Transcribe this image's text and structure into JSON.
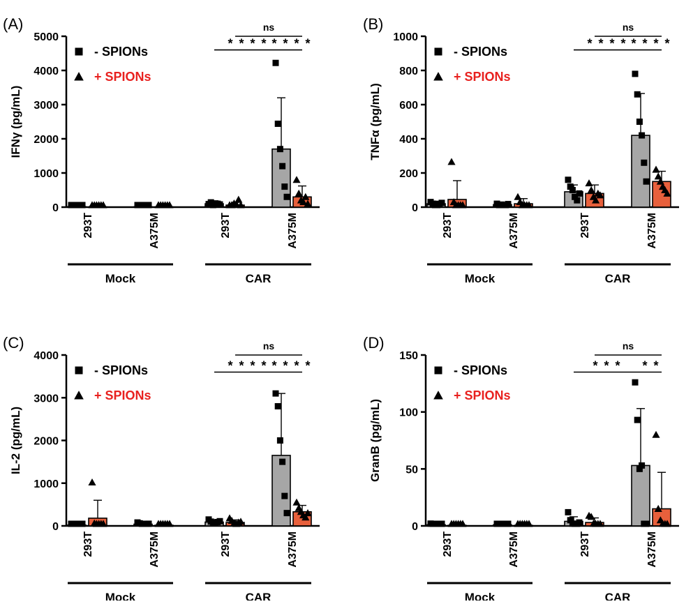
{
  "colors": {
    "minus_bar": "#a6a6a6",
    "plus_bar": "#e8603c",
    "legend_plus_text": "#e8211f",
    "ink": "#000000"
  },
  "chart_data": [
    {
      "type": "bar",
      "panel_label": "(A)",
      "ylabel": "IFNγ (pg/mL)",
      "ylim": [
        0,
        5000
      ],
      "yticks": [
        0,
        1000,
        2000,
        3000,
        4000,
        5000
      ],
      "categories": [
        "293T",
        "A375M",
        "293T",
        "A375M"
      ],
      "groups": [
        {
          "label": "Mock",
          "categories": [
            0,
            1
          ]
        },
        {
          "label": "CAR",
          "categories": [
            2,
            3
          ]
        }
      ],
      "legend": [
        "- SPIONs",
        "+ SPIONs"
      ],
      "series": [
        {
          "name": "- SPIONs",
          "marker": "square",
          "values": [
            15,
            10,
            100,
            1700
          ],
          "error": [
            15,
            10,
            60,
            1500
          ],
          "points": [
            [
              20,
              10,
              5,
              15,
              8,
              12
            ],
            [
              12,
              8,
              5,
              10,
              14,
              6
            ],
            [
              90,
              140,
              60,
              110,
              100,
              80
            ],
            [
              4220,
              2440,
              1700,
              1200,
              600,
              300
            ]
          ]
        },
        {
          "name": "+ SPIONs",
          "marker": "triangle",
          "values": [
            8,
            8,
            60,
            300
          ],
          "error": [
            5,
            5,
            80,
            320
          ],
          "points": [
            [
              10,
              5,
              8,
              12,
              6,
              7
            ],
            [
              6,
              9,
              5,
              11,
              7,
              10
            ],
            [
              30,
              60,
              110,
              90,
              220,
              50
            ],
            [
              800,
              400,
              200,
              150,
              300,
              100
            ]
          ]
        }
      ],
      "significance": [
        {
          "label": "****",
          "from": [
            2,
            0
          ],
          "to": [
            3,
            0
          ],
          "y": 4600
        },
        {
          "label": "****",
          "from": [
            3,
            0
          ],
          "to": [
            3,
            1
          ],
          "y": 4600
        },
        {
          "label": "ns",
          "from": [
            2,
            1
          ],
          "to": [
            3,
            1
          ],
          "y": 5000
        }
      ]
    },
    {
      "type": "bar",
      "panel_label": "(B)",
      "ylabel": "TNFα (pg/mL)",
      "ylim": [
        0,
        1000
      ],
      "yticks": [
        0,
        200,
        400,
        600,
        800,
        1000
      ],
      "categories": [
        "293T",
        "A375M",
        "293T",
        "A375M"
      ],
      "groups": [
        {
          "label": "Mock",
          "categories": [
            0,
            1
          ]
        },
        {
          "label": "CAR",
          "categories": [
            2,
            3
          ]
        }
      ],
      "legend": [
        "- SPIONs",
        "+ SPIONs"
      ],
      "series": [
        {
          "name": "- SPIONs",
          "marker": "square",
          "values": [
            20,
            15,
            90,
            420
          ],
          "error": [
            15,
            10,
            40,
            245
          ],
          "points": [
            [
              30,
              20,
              10,
              5,
              15,
              25
            ],
            [
              20,
              10,
              15,
              8,
              12,
              18
            ],
            [
              160,
              120,
              100,
              60,
              40,
              80
            ],
            [
              780,
              660,
              500,
              420,
              260,
              150
            ]
          ]
        },
        {
          "name": "+ SPIONs",
          "marker": "triangle",
          "values": [
            45,
            20,
            80,
            150
          ],
          "error": [
            110,
            30,
            50,
            60
          ],
          "points": [
            [
              265,
              30,
              10,
              5,
              8,
              12
            ],
            [
              60,
              30,
              10,
              5,
              8,
              12
            ],
            [
              140,
              100,
              60,
              40,
              80,
              70
            ],
            [
              220,
              180,
              150,
              120,
              100,
              80
            ]
          ]
        }
      ],
      "significance": [
        {
          "label": "****",
          "from": [
            2,
            0
          ],
          "to": [
            3,
            0
          ],
          "y": 920
        },
        {
          "label": "****",
          "from": [
            3,
            0
          ],
          "to": [
            3,
            1
          ],
          "y": 920
        },
        {
          "label": "ns",
          "from": [
            2,
            1
          ],
          "to": [
            3,
            1
          ],
          "y": 1000
        }
      ]
    },
    {
      "type": "bar",
      "panel_label": "(C)",
      "ylabel": "IL-2 (pg/mL)",
      "ylim": [
        0,
        4000
      ],
      "yticks": [
        0,
        1000,
        2000,
        3000,
        4000
      ],
      "categories": [
        "293T",
        "A375M",
        "293T",
        "A375M"
      ],
      "groups": [
        {
          "label": "Mock",
          "categories": [
            0,
            1
          ]
        },
        {
          "label": "CAR",
          "categories": [
            2,
            3
          ]
        }
      ],
      "legend": [
        "- SPIONs",
        "+ SPIONs"
      ],
      "series": [
        {
          "name": "- SPIONs",
          "marker": "square",
          "values": [
            20,
            40,
            90,
            1650
          ],
          "error": [
            10,
            30,
            40,
            1450
          ],
          "points": [
            [
              25,
              15,
              10,
              20,
              30,
              18
            ],
            [
              80,
              60,
              40,
              20,
              30,
              50
            ],
            [
              150,
              100,
              80,
              60,
              90,
              110
            ],
            [
              3100,
              2800,
              2000,
              1500,
              700,
              300
            ]
          ]
        },
        {
          "name": "+ SPIONs",
          "marker": "triangle",
          "values": [
            180,
            15,
            80,
            330
          ],
          "error": [
            420,
            10,
            60,
            150
          ],
          "points": [
            [
              1020,
              60,
              20,
              10,
              5,
              15
            ],
            [
              20,
              10,
              15,
              8,
              12,
              18
            ],
            [
              180,
              120,
              60,
              40,
              80,
              100
            ],
            [
              550,
              420,
              330,
              250,
              200,
              300
            ]
          ]
        }
      ],
      "significance": [
        {
          "label": "****",
          "from": [
            2,
            0
          ],
          "to": [
            3,
            0
          ],
          "y": 3600
        },
        {
          "label": "****",
          "from": [
            3,
            0
          ],
          "to": [
            3,
            1
          ],
          "y": 3600
        },
        {
          "label": "ns",
          "from": [
            2,
            1
          ],
          "to": [
            3,
            1
          ],
          "y": 4000
        }
      ]
    },
    {
      "type": "bar",
      "panel_label": "(D)",
      "ylabel": "GranB (pg/mL)",
      "ylim": [
        0,
        150
      ],
      "yticks": [
        0,
        50,
        100,
        150
      ],
      "categories": [
        "293T",
        "A375M",
        "293T",
        "A375M"
      ],
      "groups": [
        {
          "label": "Mock",
          "categories": [
            0,
            1
          ]
        },
        {
          "label": "CAR",
          "categories": [
            2,
            3
          ]
        }
      ],
      "legend": [
        "- SPIONs",
        "+ SPIONs"
      ],
      "series": [
        {
          "name": "- SPIONs",
          "marker": "square",
          "values": [
            1,
            1,
            4,
            53
          ],
          "error": [
            1,
            1,
            4,
            50
          ],
          "points": [
            [
              2,
              1,
              0.5,
              1,
              0.5,
              1.5
            ],
            [
              1.5,
              1,
              0.5,
              1,
              0.5,
              1
            ],
            [
              12,
              5,
              2,
              1,
              0.5,
              3
            ],
            [
              126,
              93,
              50,
              53,
              1,
              1
            ]
          ]
        },
        {
          "name": "+ SPIONs",
          "marker": "triangle",
          "values": [
            0.5,
            0.5,
            3,
            15
          ],
          "error": [
            0.5,
            0.5,
            4,
            32
          ],
          "points": [
            [
              0.5,
              0.5,
              0.5,
              0.5,
              0.5,
              0.5
            ],
            [
              0.5,
              0.5,
              0.5,
              0.5,
              0.5,
              0.5
            ],
            [
              9,
              8,
              2,
              1,
              0.5,
              1
            ],
            [
              80,
              15,
              5,
              2,
              1,
              0.5
            ]
          ]
        }
      ],
      "significance": [
        {
          "label": "***",
          "from": [
            2,
            0
          ],
          "to": [
            3,
            0
          ],
          "y": 135
        },
        {
          "label": "**",
          "from": [
            3,
            0
          ],
          "to": [
            3,
            1
          ],
          "y": 135
        },
        {
          "label": "ns",
          "from": [
            2,
            1
          ],
          "to": [
            3,
            1
          ],
          "y": 150
        }
      ]
    }
  ]
}
